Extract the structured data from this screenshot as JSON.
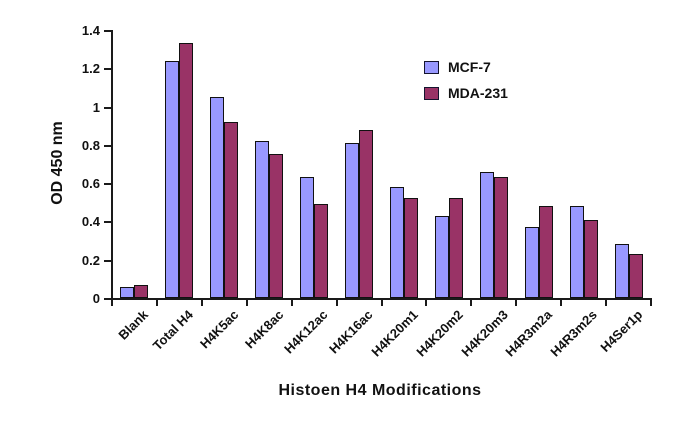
{
  "chart_data": {
    "type": "bar",
    "title": "",
    "xlabel": "Histoen H4 Modifications",
    "ylabel": "OD 450 nm",
    "ylim": [
      0,
      1.4
    ],
    "ytick_labels_bottom_up": [
      "0",
      "0.2",
      "0.4",
      "0.6",
      "0.8",
      "1",
      "1.2",
      "1.4"
    ],
    "ytick_values_bottom_up": [
      0,
      0.2,
      0.4,
      0.6,
      0.8,
      1.0,
      1.2,
      1.4
    ],
    "grid": false,
    "legend_position": "inside-top-right",
    "background_color": "#ffffff",
    "axis_color": "#1a1a1a",
    "bar_border_color": "#111111",
    "categories": [
      "Blank",
      "Total H4",
      "H4K5ac",
      "H4K8ac",
      "H4K12ac",
      "H4K16ac",
      "H4K20m1",
      "H4K20m2",
      "H4K20m3",
      "H4R3m2a",
      "H4R3m2s",
      "H4Ser1p"
    ],
    "series": [
      {
        "name": "MCF-7",
        "color": "#9999FF",
        "values": [
          0.06,
          1.24,
          1.05,
          0.82,
          0.63,
          0.81,
          0.58,
          0.43,
          0.66,
          0.37,
          0.48,
          0.28
        ]
      },
      {
        "name": "MDA-231",
        "color": "#993366",
        "values": [
          0.07,
          1.33,
          0.92,
          0.75,
          0.49,
          0.88,
          0.52,
          0.52,
          0.63,
          0.48,
          0.41,
          0.23
        ]
      }
    ]
  }
}
